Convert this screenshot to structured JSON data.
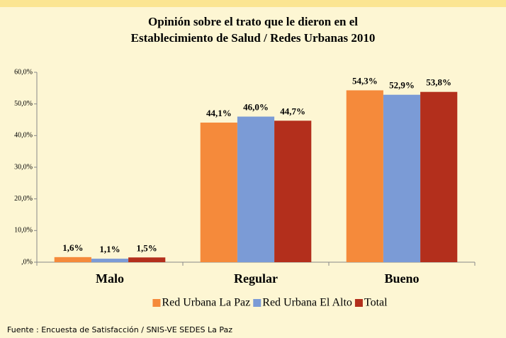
{
  "chart_data": {
    "type": "bar",
    "title": [
      "Opinión sobre el trato que le dieron en el",
      "Establecimiento de Salud / Redes Urbanas 2010"
    ],
    "categories": [
      "Malo",
      "Regular",
      "Bueno"
    ],
    "series": [
      {
        "name": "Red Urbana La Paz",
        "color": "#f58a3b",
        "values": [
          1.6,
          44.1,
          54.3
        ],
        "value_labels": [
          "1,6%",
          "44,1%",
          "54,3%"
        ]
      },
      {
        "name": "Red Urbana El Alto",
        "color": "#7b9bd6",
        "values": [
          1.1,
          46.0,
          52.9
        ],
        "value_labels": [
          "1,1%",
          "46,0%",
          "52,9%"
        ]
      },
      {
        "name": "Total",
        "color": "#b32f1c",
        "values": [
          1.5,
          44.7,
          53.8
        ],
        "value_labels": [
          "1,5%",
          "44,7%",
          "53,8%"
        ]
      }
    ],
    "ylim": [
      0,
      60
    ],
    "yticks": [
      {
        "value": 0,
        "label": ",0%"
      },
      {
        "value": 10,
        "label": "10,0%"
      },
      {
        "value": 20,
        "label": "20,0%"
      },
      {
        "value": 30,
        "label": "30,0%"
      },
      {
        "value": 40,
        "label": "40,0%"
      },
      {
        "value": 50,
        "label": "50,0%"
      },
      {
        "value": 60,
        "label": "60,0%"
      }
    ],
    "grid": false,
    "legend": "bottom",
    "source": "Fuente : Encuesta de Satisfacción / SNIS-VE  SEDES  La Paz"
  }
}
